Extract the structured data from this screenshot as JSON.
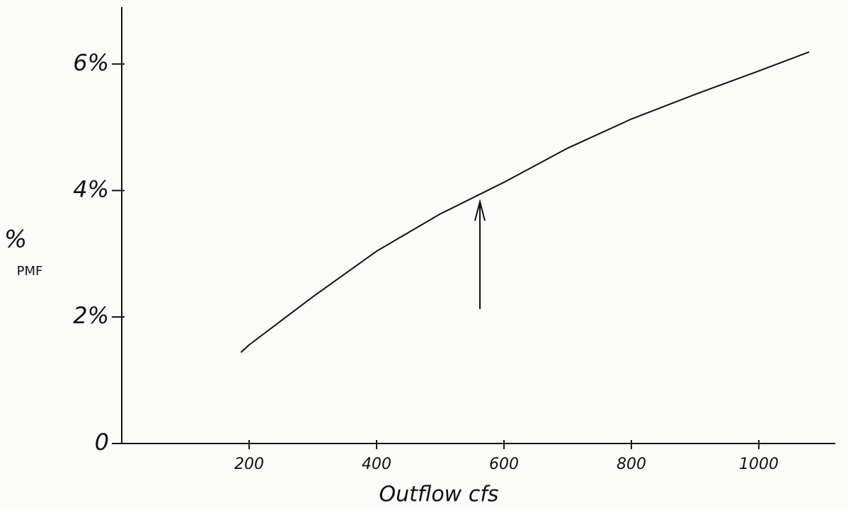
{
  "chart_data": {
    "type": "line",
    "xlabel": "Outflow cfs",
    "ylabel": [
      "%",
      "PMF"
    ],
    "x": [
      187,
      200,
      300,
      400,
      500,
      600,
      700,
      800,
      900,
      1000,
      1079
    ],
    "series": [
      {
        "color": "#111111",
        "values": [
          1.44,
          1.56,
          2.32,
          3.04,
          3.63,
          4.13,
          4.67,
          5.13,
          5.52,
          5.89,
          6.19
        ]
      }
    ],
    "xlim": [
      0,
      1120
    ],
    "ylim": [
      0,
      6.9
    ],
    "xticks": [
      200,
      400,
      600,
      800,
      1000
    ],
    "yticks": [
      0,
      {
        "value": 2,
        "label": "2%"
      },
      {
        "value": 4,
        "label": "4%"
      },
      {
        "value": 6,
        "label": "6%"
      }
    ],
    "grid": false
  }
}
